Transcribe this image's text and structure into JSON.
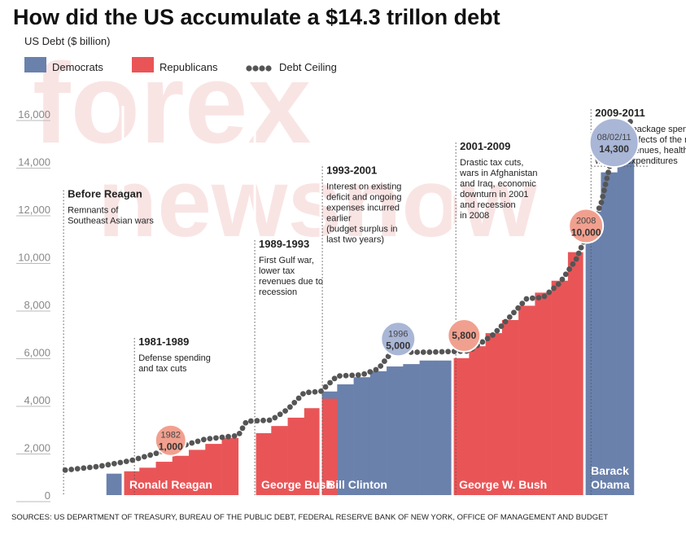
{
  "colors": {
    "democrat": "#6a81ac",
    "republican": "#e95557",
    "ceiling": "#555555",
    "bubble_red": "#f1a08f",
    "bubble_blue": "#a9b6d6",
    "watermark": "#f3c4c4"
  },
  "watermark": [
    "forex",
    "newsnow"
  ],
  "chart_data": {
    "type": "bar",
    "title": "How did the US accumulate a $14.3 trillon debt",
    "ylabel": "US Debt ($ billion)",
    "ylim": [
      0,
      16000
    ],
    "yticks": [
      {
        "value": 0,
        "label": "0"
      },
      {
        "value": 2000,
        "label": "2,000"
      },
      {
        "value": 4000,
        "label": "4,000"
      },
      {
        "value": 6000,
        "label": "6,000"
      },
      {
        "value": 8000,
        "label": "8,000"
      },
      {
        "value": 10000,
        "label": "10,000"
      },
      {
        "value": 12000,
        "label": "12,000"
      },
      {
        "value": 14000,
        "label": "14,000"
      },
      {
        "value": 16000,
        "label": "16,000"
      }
    ],
    "x_range": [
      1976.5,
      2011.8
    ],
    "legend": [
      {
        "label": "Democrats",
        "kind": "box",
        "color": "#6a81ac"
      },
      {
        "label": "Republicans",
        "kind": "box",
        "color": "#e95557"
      },
      {
        "label": "Debt Ceiling",
        "kind": "dots",
        "color": "#555555"
      }
    ],
    "series": [
      {
        "name": "Democrats",
        "color": "#6a81ac",
        "points": [
          {
            "x": 1980,
            "y": 900
          },
          {
            "x": 1993,
            "y": 4350
          },
          {
            "x": 1994,
            "y": 4650
          },
          {
            "x": 1995,
            "y": 4950
          },
          {
            "x": 1996,
            "y": 5200
          },
          {
            "x": 1997,
            "y": 5400
          },
          {
            "x": 1998,
            "y": 5500
          },
          {
            "x": 1999,
            "y": 5650
          },
          {
            "x": 2000,
            "y": 5650
          },
          {
            "x": 2009,
            "y": 11900
          },
          {
            "x": 2010,
            "y": 13550
          },
          {
            "x": 2011,
            "y": 15400
          }
        ]
      },
      {
        "name": "Republicans",
        "color": "#e95557",
        "points": [
          {
            "x": 1981,
            "y": 1000
          },
          {
            "x": 1982,
            "y": 1150
          },
          {
            "x": 1983,
            "y": 1400
          },
          {
            "x": 1984,
            "y": 1650
          },
          {
            "x": 1985,
            "y": 1900
          },
          {
            "x": 1986,
            "y": 2150
          },
          {
            "x": 1987,
            "y": 2400
          },
          {
            "x": 1989,
            "y": 2600
          },
          {
            "x": 1990,
            "y": 2900
          },
          {
            "x": 1991,
            "y": 3250
          },
          {
            "x": 1992,
            "y": 3650
          },
          {
            "x": 1993,
            "y": 4050
          },
          {
            "x": 2001,
            "y": 5750
          },
          {
            "x": 2002,
            "y": 6250
          },
          {
            "x": 2003,
            "y": 6800
          },
          {
            "x": 2004,
            "y": 7350
          },
          {
            "x": 2005,
            "y": 7950
          },
          {
            "x": 2006,
            "y": 8500
          },
          {
            "x": 2007,
            "y": 9000
          },
          {
            "x": 2008,
            "y": 10200
          }
        ]
      },
      {
        "name": "Debt Ceiling",
        "color": "#555555",
        "type": "line",
        "points": [
          {
            "x": 1977,
            "y": 1050
          },
          {
            "x": 1979,
            "y": 1200
          },
          {
            "x": 1981,
            "y": 1450
          },
          {
            "x": 1982.5,
            "y": 1750
          },
          {
            "x": 1984,
            "y": 2050
          },
          {
            "x": 1985.5,
            "y": 2350
          },
          {
            "x": 1987.5,
            "y": 2500
          },
          {
            "x": 1988,
            "y": 3100
          },
          {
            "x": 1989.5,
            "y": 3150
          },
          {
            "x": 1990.5,
            "y": 3600
          },
          {
            "x": 1991.5,
            "y": 4300
          },
          {
            "x": 1992.5,
            "y": 4350
          },
          {
            "x": 1993.5,
            "y": 5000
          },
          {
            "x": 1995,
            "y": 5050
          },
          {
            "x": 1996,
            "y": 5300
          },
          {
            "x": 1996.8,
            "y": 6000
          },
          {
            "x": 1999,
            "y": 6000
          },
          {
            "x": 2001.5,
            "y": 6050
          },
          {
            "x": 2003,
            "y": 6750
          },
          {
            "x": 2004,
            "y": 7500
          },
          {
            "x": 2005,
            "y": 8250
          },
          {
            "x": 2006,
            "y": 8300
          },
          {
            "x": 2007,
            "y": 8900
          },
          {
            "x": 2008,
            "y": 9900
          },
          {
            "x": 2008.8,
            "y": 11200
          },
          {
            "x": 2009.5,
            "y": 12200
          },
          {
            "x": 2010.2,
            "y": 14300
          },
          {
            "x": 2011.3,
            "y": 15700
          }
        ]
      }
    ],
    "presidents": [
      {
        "name": "Ronald Reagan",
        "party": "Republican",
        "start": 1981,
        "end": 1988
      },
      {
        "name": "George Bush",
        "party": "Republican",
        "start": 1989,
        "end": 1992
      },
      {
        "name": "Bill Clinton",
        "party": "Democrat",
        "start": 1993,
        "end": 2000
      },
      {
        "name": "George W. Bush",
        "party": "Republican",
        "start": 2001,
        "end": 2008
      },
      {
        "name": "Barack Obama",
        "party": "Democrat",
        "start": 2009,
        "end": 2011,
        "lines": [
          "Barack",
          "Obama"
        ]
      }
    ],
    "annotations": [
      {
        "x": 1976.9,
        "y_top": 12800,
        "heading": "Before Reagan",
        "lines": [
          "Remnants of",
          "Southeast Asian wars"
        ]
      },
      {
        "x": 1981.2,
        "y_top": 6600,
        "heading": "1981-1989",
        "lines": [
          "Defense spending",
          "and tax cuts"
        ]
      },
      {
        "x": 1988.5,
        "y_top": 10700,
        "heading": "1989-1993",
        "lines": [
          "First Gulf war,",
          "lower tax",
          "revenues due to",
          "recession"
        ]
      },
      {
        "x": 1992.6,
        "y_top": 13800,
        "heading": "1993-2001",
        "lines": [
          "Interest on existing",
          "deficit and ongoing",
          "expenses incurred",
          "earlier",
          "(budget surplus in",
          "last two years)"
        ]
      },
      {
        "x": 2000.7,
        "y_top": 14800,
        "heading": "2001-2009",
        "lines": [
          "Drastic tax cuts,",
          "wars in Afghanistan",
          "and Iraq, economic",
          "downturn in 2001",
          "and recession",
          "in 2008"
        ]
      },
      {
        "x": 2008.9,
        "y_top": 16200,
        "heading": "2009-2011",
        "lines": [
          "Stimulus package spending,",
          "tax cuts, effects of the recession",
          " on tax revenues, health and",
          "welfare expenditures"
        ]
      }
    ],
    "callouts": [
      {
        "year_label": "1982",
        "value_label": "1,000",
        "x": 1983.4,
        "y": 2300,
        "r": 19,
        "color": "red"
      },
      {
        "year_label": "1996",
        "value_label": "5,000",
        "x": 1997.2,
        "y": 6550,
        "r": 21,
        "color": "blue"
      },
      {
        "year_label": "",
        "value_label": "5,800",
        "x": 2001.2,
        "y": 6700,
        "r": 20,
        "color": "red"
      },
      {
        "year_label": "2008",
        "value_label": "10,000",
        "x": 2008.6,
        "y": 11300,
        "r": 21,
        "color": "red"
      },
      {
        "year_label": "08/02/11",
        "value_label": "14,300",
        "x": 2010.3,
        "y": 14800,
        "r": 30,
        "color": "blue"
      }
    ]
  },
  "source": "SOURCES: US DEPARTMENT OF TREASURY, BUREAU OF THE PUBLIC DEBT, FEDERAL RESERVE BANK OF NEW YORK, OFFICE OF MANAGEMENT AND BUDGET"
}
